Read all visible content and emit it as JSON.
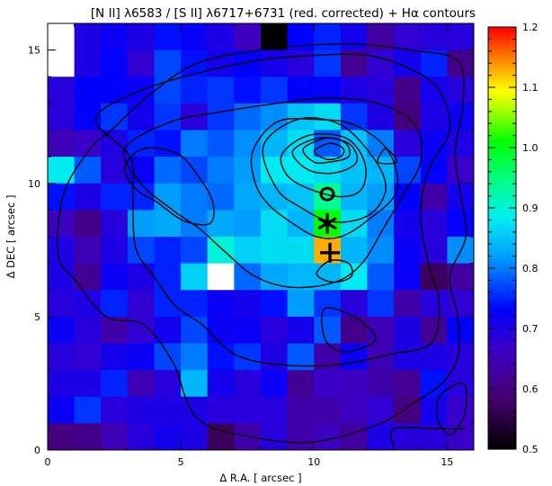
{
  "chart_data": [
    {
      "type": "heatmap",
      "title": "[N II] λ6583 / [S II] λ6717+6731 (red. corrected) + Hα contours",
      "xlabel": "Δ R.A.  [ arcsec ]",
      "ylabel": "Δ DEC  [ arcsec ]",
      "xlim": [
        0,
        16
      ],
      "ylim": [
        0,
        16
      ],
      "x_ticks": [
        "0",
        "5",
        "10",
        "15"
      ],
      "y_ticks": [
        "0",
        "5",
        "10",
        "15"
      ],
      "grid": false,
      "pixel_size_arcsec": 1.0,
      "color_scale": {
        "min": 0.5,
        "max": 1.2,
        "colormap": "IDL rainbow (black–purple–blue–cyan–green–yellow–red)"
      },
      "missing_pixel_color": "#ffffff",
      "rows_top_to_bottom": [
        [
          null,
          0.7,
          0.72,
          0.7,
          0.74,
          0.72,
          0.7,
          0.66,
          0.5,
          0.73,
          0.75,
          0.71,
          0.63,
          0.68,
          0.69,
          0.69
        ],
        [
          null,
          0.7,
          0.73,
          0.68,
          0.77,
          0.74,
          0.71,
          0.73,
          0.71,
          0.69,
          0.76,
          0.62,
          0.68,
          0.71,
          0.75,
          0.61
        ],
        [
          0.69,
          0.73,
          0.73,
          0.72,
          0.77,
          0.75,
          0.76,
          0.74,
          0.76,
          0.73,
          0.73,
          0.7,
          0.69,
          0.61,
          0.71,
          0.69
        ],
        [
          0.69,
          0.73,
          0.76,
          0.71,
          0.76,
          0.69,
          0.76,
          0.79,
          0.81,
          0.85,
          0.87,
          0.76,
          0.7,
          0.6,
          0.7,
          0.72
        ],
        [
          0.65,
          0.67,
          0.7,
          0.75,
          0.74,
          0.8,
          0.78,
          0.81,
          0.84,
          0.87,
          0.78,
          0.85,
          0.8,
          0.69,
          0.72,
          0.7
        ],
        [
          0.88,
          0.78,
          0.69,
          0.72,
          0.79,
          0.77,
          0.8,
          0.82,
          0.88,
          0.88,
          0.87,
          0.85,
          0.84,
          0.77,
          0.73,
          0.67
        ],
        [
          0.74,
          0.7,
          0.75,
          0.75,
          0.82,
          0.8,
          0.79,
          0.83,
          0.84,
          0.85,
          0.94,
          0.84,
          0.82,
          0.73,
          0.64,
          0.71
        ],
        [
          0.66,
          0.61,
          0.69,
          0.82,
          0.83,
          0.8,
          0.83,
          0.82,
          0.87,
          0.84,
          1.01,
          0.87,
          0.8,
          0.71,
          0.69,
          0.73
        ],
        [
          0.7,
          0.65,
          0.7,
          0.77,
          0.75,
          0.77,
          0.9,
          0.86,
          0.87,
          0.87,
          1.13,
          0.84,
          0.81,
          0.72,
          0.69,
          0.81
        ],
        [
          0.7,
          0.62,
          0.72,
          0.7,
          0.75,
          0.86,
          null,
          0.79,
          0.83,
          0.84,
          0.84,
          0.88,
          0.78,
          0.72,
          0.57,
          0.63
        ],
        [
          0.69,
          0.7,
          0.75,
          0.68,
          0.75,
          0.75,
          0.72,
          0.71,
          0.74,
          0.82,
          0.76,
          0.69,
          0.76,
          0.64,
          0.69,
          0.68
        ],
        [
          0.72,
          0.69,
          0.64,
          0.68,
          0.71,
          0.77,
          0.72,
          0.72,
          0.69,
          0.71,
          0.78,
          0.61,
          0.65,
          0.7,
          0.62,
          0.73
        ],
        [
          0.69,
          0.68,
          0.71,
          0.72,
          0.77,
          0.8,
          0.74,
          0.76,
          0.7,
          0.78,
          0.64,
          0.72,
          0.65,
          0.7,
          0.7,
          0.69
        ],
        [
          0.7,
          0.7,
          0.75,
          0.65,
          0.69,
          0.84,
          0.71,
          0.69,
          0.72,
          0.62,
          0.67,
          0.66,
          0.64,
          0.62,
          0.74,
          0.69
        ],
        [
          0.72,
          0.76,
          0.69,
          0.7,
          0.7,
          0.7,
          0.69,
          0.69,
          0.69,
          0.64,
          0.64,
          0.66,
          0.68,
          0.6,
          0.71,
          0.67
        ],
        [
          0.6,
          0.61,
          0.65,
          0.69,
          0.71,
          0.7,
          0.57,
          0.64,
          0.69,
          0.64,
          0.66,
          0.63,
          0.7,
          0.69,
          0.69,
          0.67
        ]
      ],
      "markers": [
        {
          "symbol": "O",
          "name": "circle-marker",
          "x": 10.5,
          "y": 9.6
        },
        {
          "symbol": "*",
          "name": "asterisk-marker",
          "x": 10.5,
          "y": 8.5
        },
        {
          "symbol": "+",
          "name": "plus-marker",
          "x": 10.6,
          "y": 7.4
        }
      ],
      "contours": [
        [
          [
            5.6,
            1.2
          ],
          [
            4.7,
            3.3
          ],
          [
            3.6,
            4.7
          ],
          [
            2.2,
            5.0
          ],
          [
            1.1,
            6.3
          ],
          [
            0.4,
            7.3
          ],
          [
            0.6,
            9.6
          ],
          [
            1.6,
            11.3
          ],
          [
            2.4,
            12.0
          ],
          [
            3.8,
            13.3
          ],
          [
            5.6,
            14.5
          ],
          [
            8.0,
            15.0
          ],
          [
            10.0,
            15.2
          ],
          [
            12.0,
            15.2
          ],
          [
            13.6,
            15.0
          ],
          [
            15.4,
            14.6
          ],
          [
            15.6,
            13.0
          ],
          [
            15.3,
            11.2
          ],
          [
            15.5,
            9.6
          ],
          [
            15.7,
            8.0
          ],
          [
            15.1,
            6.5
          ],
          [
            15.4,
            5.0
          ],
          [
            15.4,
            3.5
          ],
          [
            14.8,
            2.5
          ],
          [
            13.8,
            1.8
          ],
          [
            12.5,
            1.0
          ],
          [
            10.0,
            0.3
          ],
          [
            7.6,
            0.5
          ],
          [
            5.6,
            1.2
          ]
        ],
        [
          [
            1.8,
            12.4
          ],
          [
            3.3,
            13.4
          ],
          [
            5.5,
            14.1
          ],
          [
            7.8,
            14.6
          ],
          [
            10.0,
            14.8
          ],
          [
            12.0,
            14.8
          ],
          [
            13.6,
            14.3
          ],
          [
            14.7,
            13.5
          ],
          [
            15.1,
            12.0
          ],
          [
            14.3,
            10.5
          ],
          [
            14.0,
            8.8
          ],
          [
            14.3,
            7.0
          ],
          [
            14.7,
            5.5
          ],
          [
            14.4,
            4.0
          ],
          [
            12.9,
            3.6
          ],
          [
            10.9,
            3.2
          ],
          [
            8.7,
            3.2
          ],
          [
            7.0,
            3.6
          ],
          [
            5.8,
            4.7
          ],
          [
            4.8,
            5.4
          ],
          [
            4.0,
            6.5
          ],
          [
            3.3,
            7.6
          ],
          [
            3.2,
            9.6
          ],
          [
            3.1,
            11.0
          ],
          [
            1.8,
            12.4
          ]
        ],
        [
          [
            2.9,
            11.3
          ],
          [
            4.6,
            12.3
          ],
          [
            6.6,
            12.7
          ],
          [
            8.6,
            13.0
          ],
          [
            10.5,
            13.2
          ],
          [
            12.4,
            13.0
          ],
          [
            13.8,
            12.2
          ],
          [
            14.0,
            10.8
          ],
          [
            13.3,
            9.5
          ],
          [
            12.6,
            8.3
          ],
          [
            11.8,
            7.0
          ],
          [
            10.8,
            6.3
          ],
          [
            9.2,
            6.1
          ],
          [
            7.8,
            6.5
          ],
          [
            6.7,
            7.4
          ],
          [
            5.7,
            8.3
          ],
          [
            4.7,
            9.0
          ],
          [
            3.5,
            10.0
          ],
          [
            2.9,
            11.3
          ]
        ],
        [
          [
            2.9,
            10.6
          ],
          [
            3.6,
            11.3
          ],
          [
            4.9,
            11.1
          ],
          [
            5.7,
            10.2
          ],
          [
            6.2,
            9.3
          ],
          [
            6.1,
            8.5
          ],
          [
            5.1,
            8.6
          ],
          [
            4.1,
            9.3
          ],
          [
            3.3,
            9.8
          ],
          [
            2.9,
            10.6
          ]
        ],
        [
          [
            8.6,
            12.3
          ],
          [
            10.0,
            12.4
          ],
          [
            11.5,
            12.2
          ],
          [
            12.8,
            11.2
          ],
          [
            13.1,
            9.7
          ],
          [
            12.0,
            8.6
          ],
          [
            11.0,
            8.0
          ],
          [
            10.1,
            8.0
          ],
          [
            9.2,
            8.5
          ],
          [
            8.3,
            9.2
          ],
          [
            7.8,
            10.0
          ],
          [
            7.7,
            11.2
          ],
          [
            8.6,
            12.3
          ]
        ],
        [
          [
            8.1,
            11.4
          ],
          [
            9.4,
            12.4
          ],
          [
            11.0,
            12.2
          ],
          [
            12.2,
            11.0
          ],
          [
            12.7,
            9.9
          ],
          [
            12.3,
            9.0
          ],
          [
            11.5,
            8.6
          ],
          [
            10.5,
            8.6
          ],
          [
            9.5,
            9.1
          ],
          [
            8.6,
            9.8
          ],
          [
            8.1,
            11.4
          ]
        ],
        [
          [
            8.8,
            11.1
          ],
          [
            9.8,
            11.8
          ],
          [
            11.2,
            11.7
          ],
          [
            11.9,
            10.8
          ],
          [
            11.8,
            9.8
          ],
          [
            11.0,
            9.5
          ],
          [
            9.8,
            9.8
          ],
          [
            9.0,
            10.3
          ],
          [
            8.8,
            11.1
          ]
        ],
        [
          [
            9.2,
            11.2
          ],
          [
            10.2,
            11.7
          ],
          [
            11.3,
            11.5
          ],
          [
            11.6,
            10.8
          ],
          [
            10.8,
            10.4
          ],
          [
            9.8,
            10.5
          ],
          [
            9.2,
            11.2
          ]
        ],
        [
          [
            9.6,
            11.3
          ],
          [
            10.5,
            11.7
          ],
          [
            11.2,
            11.5
          ],
          [
            11.3,
            11.0
          ],
          [
            10.6,
            10.8
          ],
          [
            10.0,
            10.8
          ],
          [
            9.6,
            11.3
          ]
        ],
        [
          [
            10.0,
            11.2
          ],
          [
            10.6,
            11.5
          ],
          [
            11.1,
            11.3
          ],
          [
            11.0,
            11.0
          ],
          [
            10.5,
            10.9
          ],
          [
            10.0,
            11.2
          ]
        ],
        [
          [
            12.4,
            10.8
          ],
          [
            12.7,
            11.3
          ],
          [
            13.1,
            10.8
          ],
          [
            12.4,
            10.8
          ]
        ],
        [
          [
            10.1,
            6.6
          ],
          [
            10.7,
            6.3
          ],
          [
            11.4,
            6.5
          ],
          [
            11.3,
            7.0
          ],
          [
            10.6,
            7.1
          ],
          [
            10.1,
            6.6
          ]
        ],
        [
          [
            10.4,
            5.3
          ],
          [
            11.5,
            5.0
          ],
          [
            12.3,
            4.3
          ],
          [
            12.0,
            3.9
          ],
          [
            11.0,
            3.7
          ],
          [
            10.4,
            4.2
          ],
          [
            10.4,
            5.3
          ]
        ],
        [
          [
            14.7,
            1.0
          ],
          [
            14.7,
            2.0
          ],
          [
            15.6,
            2.5
          ],
          [
            15.7,
            1.5
          ],
          [
            15.2,
            0.6
          ],
          [
            14.7,
            1.0
          ]
        ],
        [
          [
            13.0,
            0.1
          ],
          [
            13.0,
            0.8
          ],
          [
            14.6,
            0.8
          ],
          [
            15.7,
            0.8
          ]
        ]
      ]
    },
    {
      "type": "colorbar",
      "range": [
        0.5,
        1.2
      ],
      "tick_values": [
        0.5,
        0.6,
        0.7,
        0.8,
        0.9,
        1.0,
        1.1,
        1.2
      ],
      "tick_labels": [
        "0.5",
        "0.6",
        "0.7",
        "0.8",
        "0.9",
        "1.0",
        "1.1",
        "1.2"
      ]
    }
  ]
}
